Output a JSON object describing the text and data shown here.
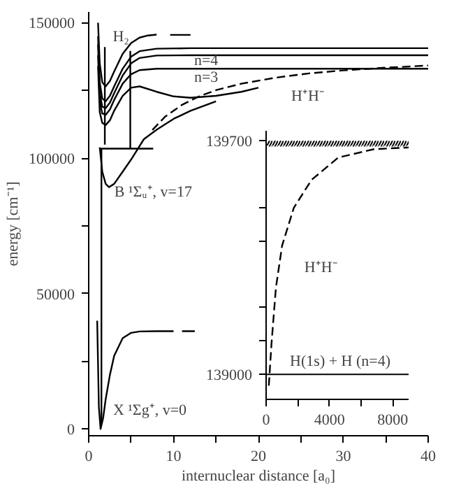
{
  "chart_data": [
    {
      "type": "line",
      "xlabel": "internuclear distance [a₀]",
      "ylabel": "energy [cm⁻¹]",
      "xlim": [
        0,
        40
      ],
      "ylim": [
        -2500,
        154000
      ],
      "xticks": [
        0,
        {
          "value": 5,
          "label": null
        },
        10,
        {
          "value": 15,
          "label": null
        },
        20,
        {
          "value": 25,
          "label": null
        },
        30,
        {
          "value": 35,
          "label": null
        },
        40
      ],
      "yticks": [
        0,
        {
          "value": 25000,
          "label": null
        },
        50000,
        {
          "value": 75000,
          "label": null
        },
        100000,
        {
          "value": 125000,
          "label": null
        },
        150000
      ],
      "series": [
        {
          "color": "#000000",
          "line_style": "solid",
          "x": [
            1.0,
            1.2,
            1.4,
            1.7,
            2,
            2.5,
            3,
            4,
            5,
            6,
            8,
            10,
            null,
            11,
            12.5
          ],
          "values": [
            40000,
            8000,
            0,
            4000,
            11000,
            20000,
            27000,
            33500,
            35500,
            36000,
            36100,
            36100,
            null,
            36100,
            36100
          ]
        },
        {
          "color": "#000000",
          "line_style": "solid",
          "x": [
            1.3,
            1.6,
            2,
            2.4,
            3,
            4,
            5,
            6.5,
            8,
            10,
            12,
            15
          ],
          "values": [
            104000,
            95000,
            90500,
            89300,
            90500,
            95000,
            99500,
            107000,
            110500,
            114500,
            117500,
            121000
          ]
        },
        {
          "color": "#000000",
          "line_style": "dashed",
          "x": [
            7.5,
            9,
            11,
            13,
            15,
            18,
            22,
            26,
            30,
            35,
            40
          ],
          "values": [
            110400,
            115300,
            119700,
            122800,
            125100,
            127500,
            129700,
            131300,
            132400,
            133400,
            134200
          ]
        },
        {
          "color": "#000000",
          "line_style": "solid",
          "x": [
            1.1,
            1.3,
            1.6,
            2,
            2.5,
            3,
            4,
            5,
            6,
            7,
            8,
            null,
            9.6,
            12
          ],
          "values": [
            150000,
            135000,
            128000,
            126500,
            128500,
            132000,
            138500,
            142500,
            144500,
            145300,
            145600,
            null,
            145500,
            145500
          ]
        },
        {
          "color": "#000000",
          "line_style": "solid",
          "x": [
            1.1,
            1.3,
            1.6,
            2,
            2.5,
            3,
            4,
            5,
            6,
            8,
            12,
            40
          ],
          "values": [
            145000,
            128000,
            122000,
            121000,
            123000,
            126500,
            133000,
            137500,
            139500,
            140400,
            140600,
            140600
          ]
        },
        {
          "color": "#000000",
          "line_style": "solid",
          "x": [
            1.1,
            1.3,
            1.6,
            2,
            2.5,
            3,
            4,
            5,
            6,
            8,
            12,
            40
          ],
          "values": [
            142000,
            124000,
            119000,
            118500,
            120500,
            124000,
            130500,
            135000,
            137000,
            137900,
            138000,
            138000
          ]
        },
        {
          "color": "#000000",
          "line_style": "solid",
          "x": [
            1.1,
            1.3,
            1.6,
            2,
            2.5,
            3,
            4,
            5,
            6,
            8,
            12,
            40
          ],
          "values": [
            138000,
            121000,
            116500,
            116000,
            118000,
            121500,
            127500,
            131000,
            132500,
            133000,
            133000,
            133000
          ]
        },
        {
          "color": "#000000",
          "line_style": "solid",
          "x": [
            1.1,
            1.3,
            1.6,
            2,
            2.5,
            3,
            4,
            5,
            6,
            8,
            10,
            12,
            15,
            18,
            20
          ],
          "values": [
            134000,
            117000,
            113000,
            112200,
            114000,
            117500,
            123000,
            126000,
            126500,
            124500,
            122800,
            122300,
            123000,
            124500,
            126000
          ]
        },
        {
          "color": "#000000",
          "line_style": "solid",
          "x": [
            1.5,
            1.5,
            7.6,
            null,
            1.9,
            1.9,
            null,
            4.9,
            4.9
          ],
          "values": [
            2000,
            103500,
            103500,
            null,
            105000,
            141000,
            null,
            103500,
            139600
          ]
        }
      ],
      "annotations": [
        "H₂",
        "n=4",
        "n=3",
        "H⁺H⁻",
        "B ¹Σᵤ⁺, v=17",
        "X ¹Σg⁺, v=0"
      ]
    },
    {
      "type": "line",
      "xlim": [
        0,
        9000
      ],
      "ylim": [
        138925,
        139730
      ],
      "xticks": [
        0,
        {
          "value": 2000,
          "label": null
        },
        4000,
        {
          "value": 6000,
          "label": null
        },
        8000
      ],
      "yticks": [
        139000,
        {
          "value": 139100,
          "label": null
        },
        {
          "value": 139200,
          "label": null
        },
        {
          "value": 139400,
          "label": null
        },
        {
          "value": 139500,
          "label": null
        },
        139700
      ],
      "series": [
        {
          "color": "#000000",
          "line_style": "dashed",
          "x": [
            170,
            340,
            620,
            1010,
            1750,
            2870,
            4560,
            6820,
            9000
          ],
          "values": [
            138966,
            139092,
            139260,
            139386,
            139499,
            139583,
            139650,
            139675,
            139680
          ]
        }
      ],
      "ref_lines": [
        {
          "axis": "y",
          "value": 139000,
          "color": "#000000",
          "line_style": "solid"
        }
      ],
      "bands": [
        {
          "axis": "y",
          "from": 139683,
          "to": 139700,
          "color": "#000000"
        }
      ],
      "annotations": [
        "H⁺H⁻",
        "H(1s) + H (n=4)"
      ]
    }
  ]
}
